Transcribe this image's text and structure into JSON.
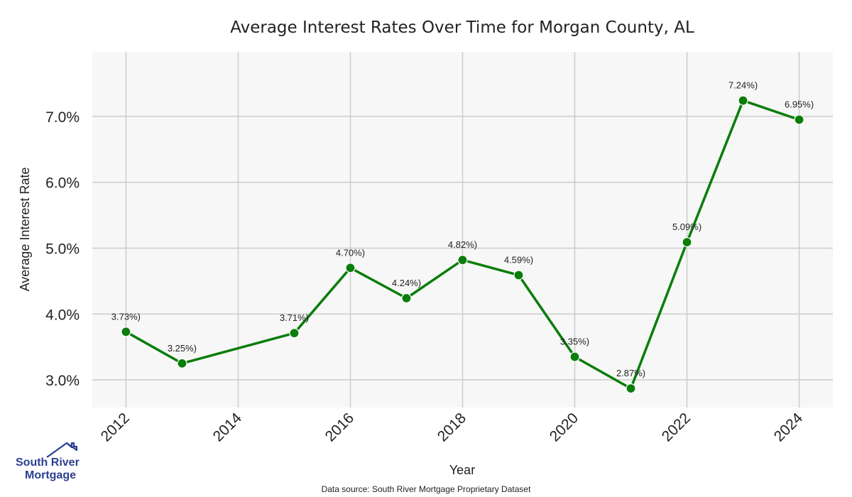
{
  "chart_data": {
    "type": "line",
    "title": "Average Interest Rates Over Time for Morgan County, AL",
    "xlabel": "Year",
    "ylabel": "Average Interest Rate",
    "xlim": [
      2011.4,
      2024.6
    ],
    "ylim": [
      2.58,
      7.98
    ],
    "x_ticks": [
      2012,
      2014,
      2016,
      2018,
      2020,
      2022,
      2024
    ],
    "y_ticks": [
      3.0,
      4.0,
      5.0,
      6.0,
      7.0
    ],
    "y_tick_labels": [
      "3.0%",
      "4.0%",
      "5.0%",
      "6.0%",
      "7.0%"
    ],
    "grid": true,
    "series": [
      {
        "name": "Average Interest Rate",
        "color": "#0a7d0a",
        "x": [
          2012,
          2013,
          2015,
          2016,
          2017,
          2018,
          2019,
          2020,
          2021,
          2022,
          2023,
          2024
        ],
        "values": [
          3.73,
          3.25,
          3.71,
          4.7,
          4.24,
          4.82,
          4.59,
          3.35,
          2.87,
          5.09,
          7.24,
          6.95
        ],
        "labels": [
          "3.73%)",
          "3.25%)",
          "3.71%)",
          "4.70%)",
          "4.24%)",
          "4.82%)",
          "4.59%)",
          "3.35%)",
          "2.87%)",
          "5.09%)",
          "7.24%)",
          "6.95%)"
        ]
      }
    ]
  },
  "source_note": "Data source: South River Mortgage Proprietary Dataset",
  "logo": {
    "line1": "South River",
    "line2": "Mortgage",
    "brand_color": "#2b3f8f"
  },
  "colors": {
    "plot_bg": "#f7f7f7",
    "grid": "#cccccc",
    "line": "#0a7d0a"
  }
}
